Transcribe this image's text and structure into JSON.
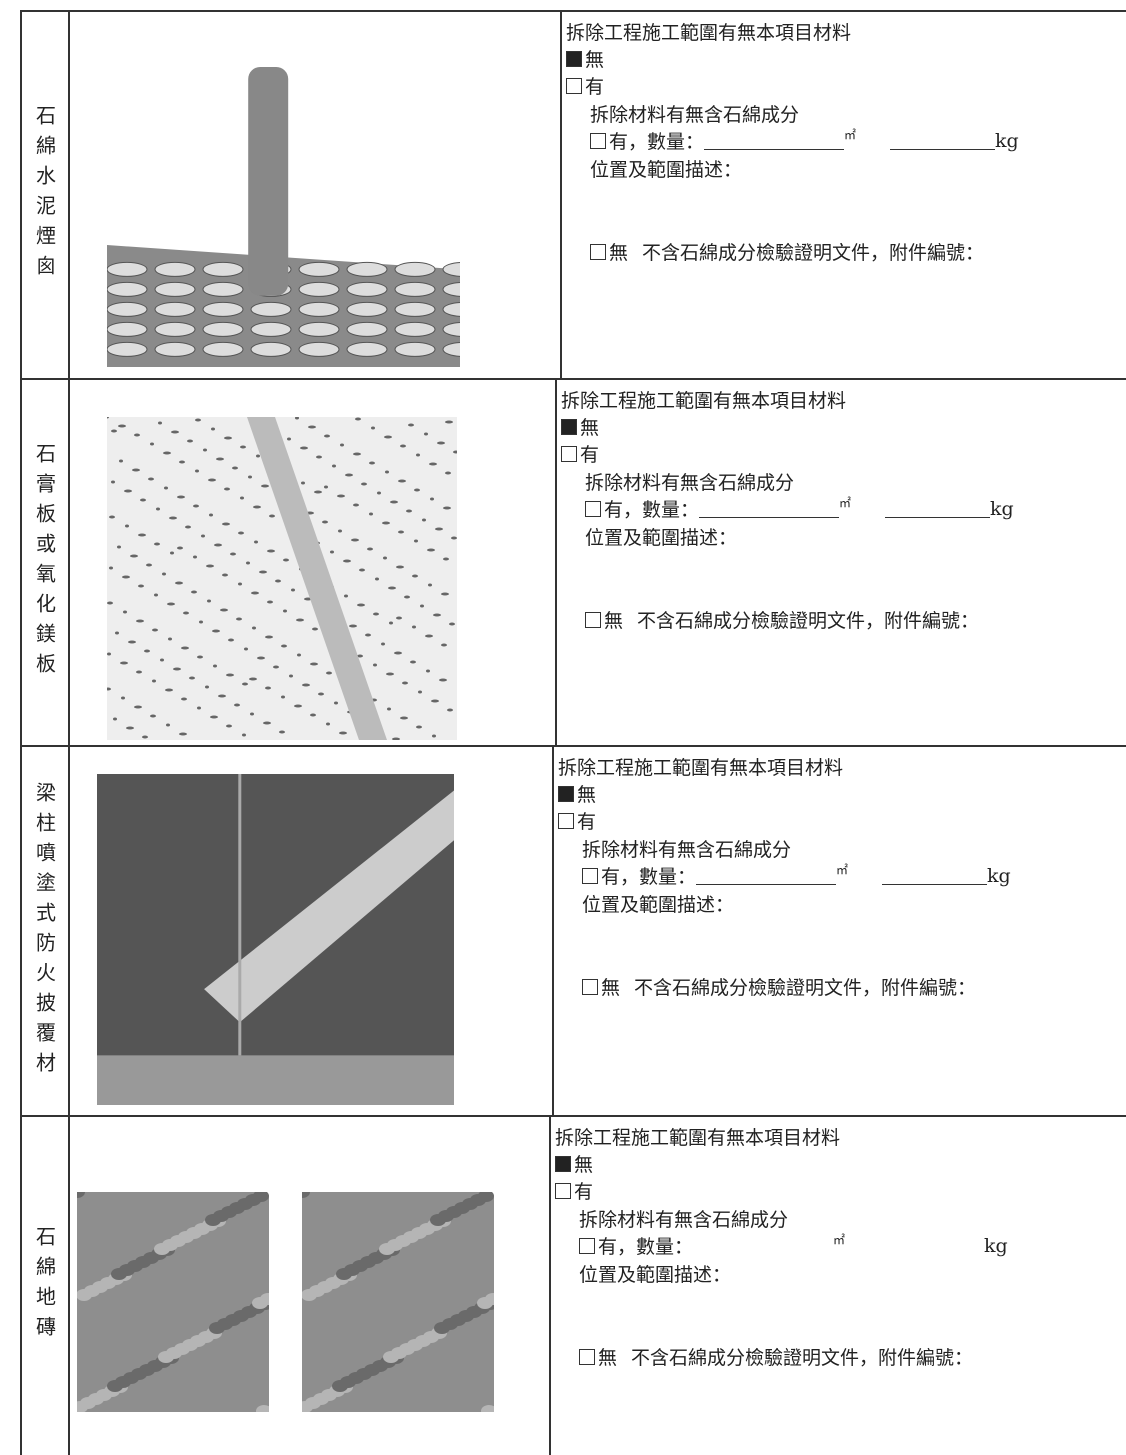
{
  "rows": [
    {
      "label": "石綿水泥煙囪",
      "question": "拆除工程施工範圍有無本項目材料",
      "option_no": "無",
      "option_yes": "有",
      "sub_question": "拆除材料有無含石綿成分",
      "quantity_label": "有，數量：",
      "area_unit": "㎡",
      "weight_unit": "kg",
      "location_label": "位置及範圍描述：",
      "no_label": "無",
      "certificate_label": "不含石綿成分檢驗證明文件，附件編號："
    },
    {
      "label": "石膏板或氧化鎂板",
      "question": "拆除工程施工範圍有無本項目材料",
      "option_no": "無",
      "option_yes": "有",
      "sub_question": "拆除材料有無含石綿成分",
      "quantity_label": "有，數量：",
      "area_unit": "㎡",
      "weight_unit": "kg",
      "location_label": "位置及範圍描述：",
      "no_label": "無",
      "certificate_label": "不含石綿成分檢驗證明文件，附件編號："
    },
    {
      "label": "梁柱噴塗式防火披覆材",
      "question": "拆除工程施工範圍有無本項目材料",
      "option_no": "無",
      "option_yes": "有",
      "sub_question": "拆除材料有無含石綿成分",
      "quantity_label": "有，數量：",
      "area_unit": "㎡",
      "weight_unit": "kg",
      "location_label": "位置及範圍描述：",
      "no_label": "無",
      "certificate_label": "不含石綿成分檢驗證明文件，附件編號："
    },
    {
      "label": "石綿地磚",
      "question": "拆除工程施工範圍有無本項目材料",
      "option_no": "無",
      "option_yes": "有",
      "sub_question": "拆除材料有無含石綿成分",
      "quantity_label": "有，數量：",
      "area_unit": "㎡",
      "weight_unit": "kg",
      "location_label": "位置及範圍描述：",
      "no_label": "無",
      "certificate_label": "不含石綿成分檢驗證明文件，附件編號："
    }
  ]
}
